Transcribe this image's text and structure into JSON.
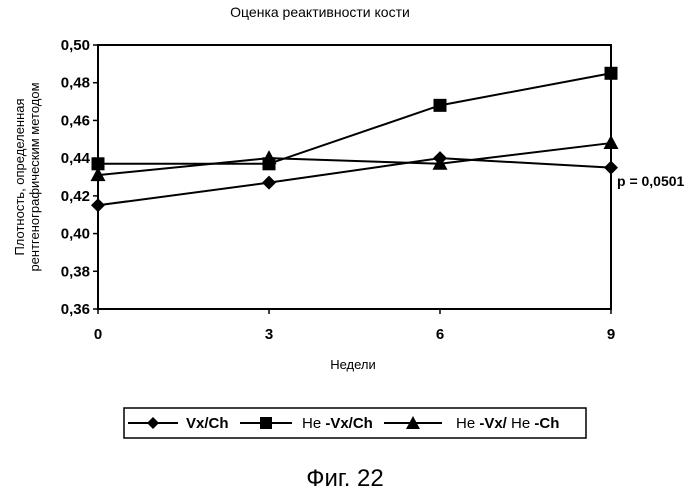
{
  "chart_data": {
    "type": "line",
    "title": "Оценка реактивности кости",
    "xlabel": "Недели",
    "ylabel_lines": [
      "Плотность, определенная",
      "рентгенографическим методом"
    ],
    "x": [
      0,
      3,
      6,
      9
    ],
    "x_ticks": [
      "0",
      "3",
      "6",
      "9"
    ],
    "ylim": [
      0.36,
      0.5
    ],
    "y_ticks": [
      "0,36",
      "0,38",
      "0,40",
      "0,42",
      "0,44",
      "0,46",
      "0,48",
      "0,50"
    ],
    "grid": false,
    "legend_position": "bottom",
    "series": [
      {
        "name": "Vx/Ch",
        "marker": "diamond",
        "values": [
          0.415,
          0.427,
          0.44,
          0.435
        ]
      },
      {
        "name": "Не -Vx/Ch",
        "marker": "square",
        "values": [
          0.437,
          0.437,
          0.468,
          0.485
        ]
      },
      {
        "name": "Не -Vx/ Не -Ch",
        "marker": "triangle",
        "values": [
          0.431,
          0.44,
          0.437,
          0.448
        ]
      }
    ],
    "annotation": "p = 0,0501"
  },
  "legend": [
    {
      "prefix": "",
      "bold": "Vx/Ch",
      "mid": "",
      "bold2": ""
    },
    {
      "prefix": "Не ",
      "bold": "-Vx/Ch",
      "mid": "",
      "bold2": ""
    },
    {
      "prefix": "Не ",
      "bold": "-Vx/",
      "mid": " Не ",
      "bold2": "-Ch"
    }
  ],
  "caption": "Фиг. 22",
  "colors": {
    "ink": "#000000",
    "background": "#ffffff"
  }
}
